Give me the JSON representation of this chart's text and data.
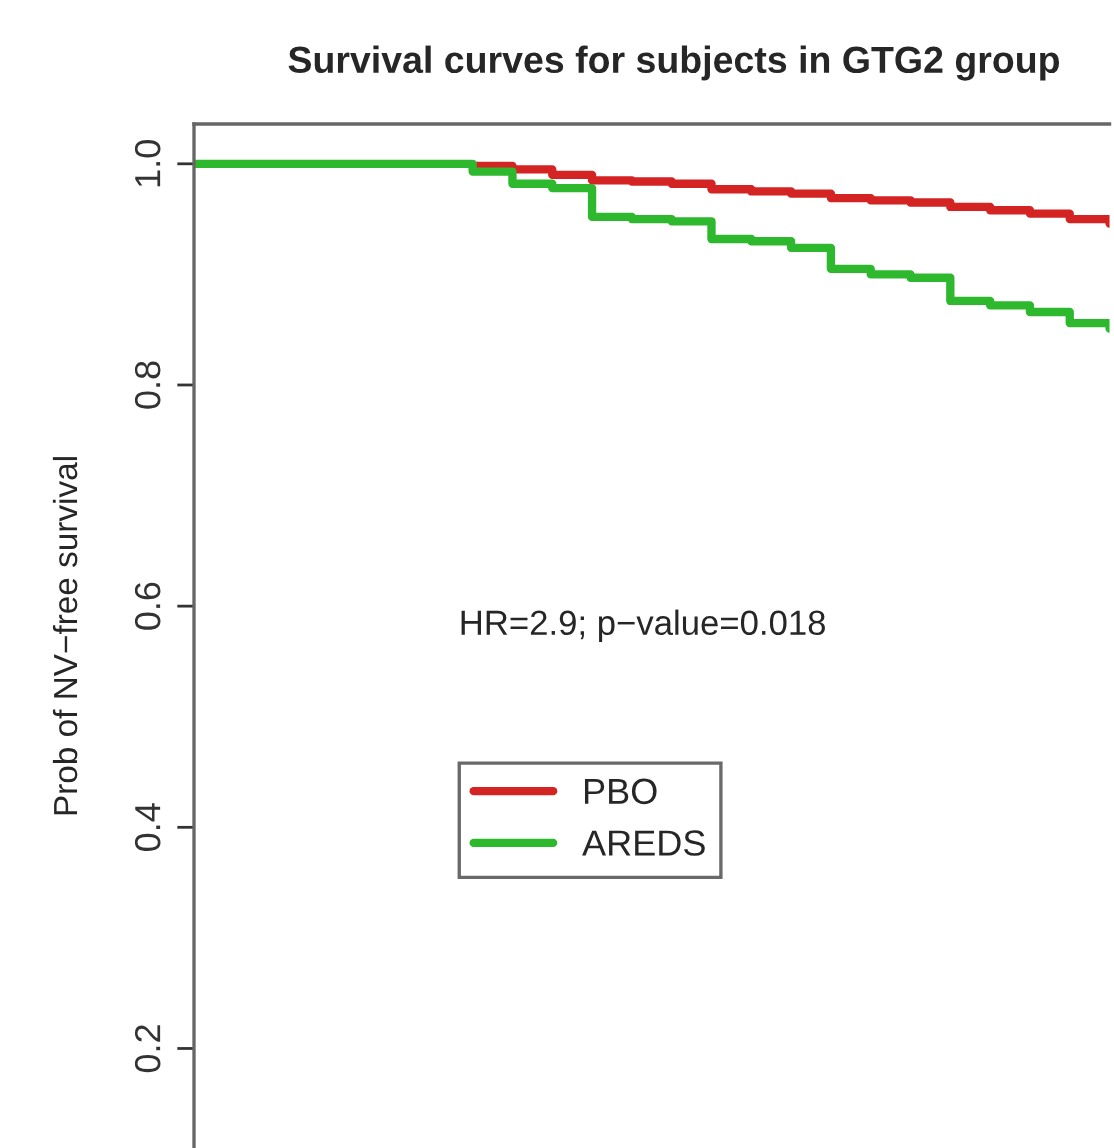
{
  "chart_data": {
    "type": "step",
    "title": "Survival curves for subjects in GTG2 group",
    "ylabel": "Prob of NV−free survival",
    "categories": [
      null,
      null,
      null,
      null,
      null,
      null,
      null,
      null,
      null,
      null,
      null,
      null,
      null,
      null,
      null,
      null,
      null,
      null,
      null,
      null,
      null,
      null,
      null,
      null
    ],
    "series": [
      {
        "name": "PBO",
        "color": "#d42323",
        "values": [
          null,
          null,
          null,
          null,
          null,
          null,
          null,
          0.998,
          0.995,
          0.99,
          0.985,
          0.984,
          0.982,
          0.977,
          0.975,
          0.973,
          0.969,
          0.967,
          0.965,
          0.961,
          0.958,
          0.955,
          0.95,
          0.946
        ]
      },
      {
        "name": "AREDS",
        "color": "#2eb82e",
        "values": [
          1,
          1,
          1,
          1,
          1,
          1,
          1,
          0.993,
          0.982,
          0.978,
          0.952,
          0.95,
          0.948,
          0.932,
          0.93,
          0.924,
          0.905,
          0.9,
          0.897,
          0.876,
          0.872,
          0.866,
          0.856,
          0.851
        ]
      }
    ],
    "ylim": [
      0.11,
      1.036
    ],
    "yticks": [
      0.2,
      0.4,
      0.6,
      0.8,
      {
        "value": 1,
        "label": "1.0"
      }
    ],
    "tick_labels": "y",
    "grid": false,
    "legend": "left",
    "line_style": "solid",
    "annotations": [
      "HR=2.9; p−value=0.018"
    ]
  }
}
